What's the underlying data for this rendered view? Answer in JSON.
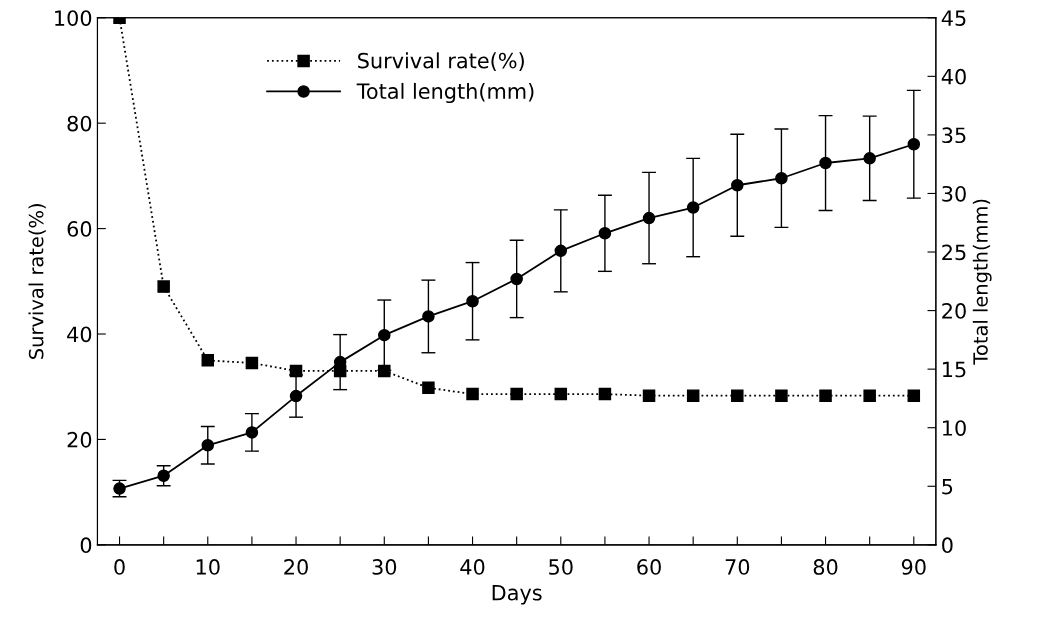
{
  "chart_data": {
    "type": "line",
    "xlabel": "Days",
    "ylabel": "Survival rate(%)",
    "y2label": "Total length(mm)",
    "x": [
      0,
      5,
      10,
      15,
      20,
      25,
      30,
      35,
      40,
      45,
      50,
      55,
      60,
      65,
      70,
      75,
      80,
      85,
      90
    ],
    "series": [
      {
        "name": "Survival rate(%)",
        "color": "#000000",
        "marker": "square",
        "line_style": "dotted",
        "values": [
          100,
          49,
          35,
          34.5,
          33,
          33,
          33,
          29.8,
          28.6,
          28.6,
          28.6,
          28.6,
          28.3,
          28.3,
          28.3,
          28.3,
          28.3,
          28.3,
          28.3
        ]
      },
      {
        "name": "Total length(mm)",
        "color": "#000000",
        "marker": "circle",
        "line_style": "solid",
        "axis": "y2",
        "values": [
          4.8,
          5.9,
          8.5,
          9.6,
          12.7,
          15.6,
          17.9,
          19.5,
          20.8,
          22.7,
          25.1,
          26.6,
          27.9,
          28.8,
          30.7,
          31.3,
          32.6,
          33.0,
          34.2
        ],
        "errors": [
          0.7,
          0.85,
          1.6,
          1.6,
          1.8,
          2.35,
          3.0,
          3.1,
          3.3,
          3.3,
          3.5,
          3.25,
          3.9,
          4.2,
          4.35,
          4.2,
          4.05,
          3.6,
          4.6
        ]
      }
    ],
    "xlim": [
      -2.5,
      92.5
    ],
    "xticks": [
      0,
      {
        "value": 5,
        "label": null
      },
      10,
      {
        "value": 15,
        "label": null
      },
      20,
      {
        "value": 25,
        "label": null
      },
      30,
      {
        "value": 35,
        "label": null
      },
      40,
      {
        "value": 45,
        "label": null
      },
      50,
      {
        "value": 55,
        "label": null
      },
      60,
      {
        "value": 65,
        "label": null
      },
      70,
      {
        "value": 75,
        "label": null
      },
      80,
      {
        "value": 85,
        "label": null
      },
      90
    ],
    "ylim": [
      0,
      100
    ],
    "yticks": [
      0,
      20,
      40,
      60,
      80,
      100
    ],
    "y2lim": [
      0,
      45
    ],
    "y2ticks": [
      0,
      5,
      10,
      15,
      20,
      25,
      30,
      35,
      40,
      45
    ],
    "grid": false,
    "legend": "top left"
  }
}
